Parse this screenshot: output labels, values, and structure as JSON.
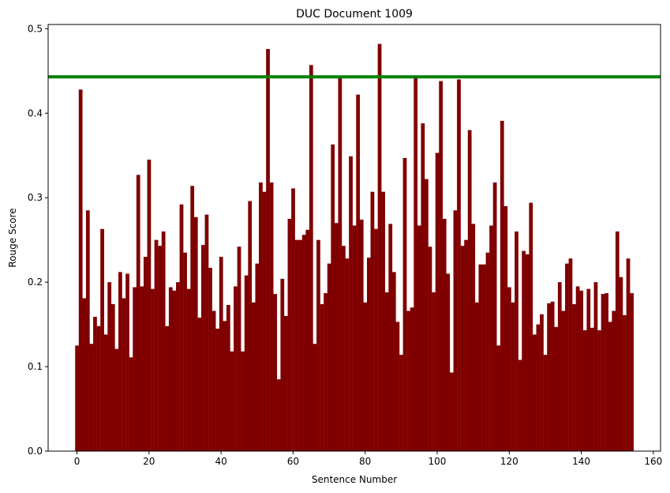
{
  "chart_data": {
    "type": "bar",
    "title": "DUC Document 1009",
    "xlabel": "Sentence Number",
    "ylabel": "Rouge Score",
    "xlim": [
      -8,
      162
    ],
    "ylim": [
      0,
      0.505
    ],
    "xticks": [
      "0",
      "20",
      "40",
      "60",
      "80",
      "100",
      "120",
      "140",
      "160"
    ],
    "yticks": [
      "0.0",
      "0.1",
      "0.2",
      "0.3",
      "0.4",
      "0.5"
    ],
    "grid": false,
    "bar_color": "#800000",
    "reference_line": {
      "y": 0.443,
      "color": "#008000"
    },
    "x": [
      0,
      1,
      2,
      3,
      4,
      5,
      6,
      7,
      8,
      9,
      10,
      11,
      12,
      13,
      14,
      15,
      16,
      17,
      18,
      19,
      20,
      21,
      22,
      23,
      24,
      25,
      26,
      27,
      28,
      29,
      30,
      31,
      32,
      33,
      34,
      35,
      36,
      37,
      38,
      39,
      40,
      41,
      42,
      43,
      44,
      45,
      46,
      47,
      48,
      49,
      50,
      51,
      52,
      53,
      54,
      55,
      56,
      57,
      58,
      59,
      60,
      61,
      62,
      63,
      64,
      65,
      66,
      67,
      68,
      69,
      70,
      71,
      72,
      73,
      74,
      75,
      76,
      77,
      78,
      79,
      80,
      81,
      82,
      83,
      84,
      85,
      86,
      87,
      88,
      89,
      90,
      91,
      92,
      93,
      94,
      95,
      96,
      97,
      98,
      99,
      100,
      101,
      102,
      103,
      104,
      105,
      106,
      107,
      108,
      109,
      110,
      111,
      112,
      113,
      114,
      115,
      116,
      117,
      118,
      119,
      120,
      121,
      122,
      123,
      124,
      125,
      126,
      127,
      128,
      129,
      130,
      131,
      132,
      133,
      134,
      135,
      136,
      137,
      138,
      139,
      140,
      141,
      142,
      143,
      144,
      145,
      146,
      147,
      148,
      149,
      150,
      151,
      152,
      153,
      154
    ],
    "values": [
      0.125,
      0.428,
      0.181,
      0.285,
      0.127,
      0.159,
      0.148,
      0.263,
      0.138,
      0.2,
      0.174,
      0.121,
      0.212,
      0.181,
      0.21,
      0.111,
      0.194,
      0.327,
      0.195,
      0.23,
      0.345,
      0.192,
      0.25,
      0.243,
      0.26,
      0.148,
      0.194,
      0.19,
      0.2,
      0.292,
      0.235,
      0.192,
      0.314,
      0.277,
      0.158,
      0.244,
      0.28,
      0.217,
      0.166,
      0.145,
      0.23,
      0.154,
      0.173,
      0.118,
      0.195,
      0.242,
      0.118,
      0.208,
      0.296,
      0.176,
      0.222,
      0.318,
      0.307,
      0.476,
      0.318,
      0.186,
      0.085,
      0.204,
      0.16,
      0.275,
      0.311,
      0.25,
      0.25,
      0.256,
      0.262,
      0.457,
      0.127,
      0.25,
      0.174,
      0.187,
      0.222,
      0.363,
      0.27,
      0.443,
      0.243,
      0.228,
      0.349,
      0.267,
      0.422,
      0.274,
      0.176,
      0.229,
      0.307,
      0.263,
      0.482,
      0.307,
      0.188,
      0.269,
      0.212,
      0.153,
      0.114,
      0.347,
      0.166,
      0.17,
      0.443,
      0.267,
      0.388,
      0.322,
      0.242,
      0.188,
      0.353,
      0.438,
      0.275,
      0.21,
      0.093,
      0.285,
      0.44,
      0.243,
      0.25,
      0.38,
      0.269,
      0.176,
      0.221,
      0.221,
      0.235,
      0.267,
      0.318,
      0.125,
      0.391,
      0.29,
      0.194,
      0.176,
      0.26,
      0.108,
      0.237,
      0.233,
      0.294,
      0.138,
      0.15,
      0.162,
      0.114,
      0.175,
      0.177,
      0.147,
      0.2,
      0.166,
      0.222,
      0.228,
      0.174,
      0.195,
      0.19,
      0.143,
      0.192,
      0.146,
      0.2,
      0.143,
      0.186,
      0.187,
      0.153,
      0.166,
      0.26,
      0.206,
      0.161,
      0.228,
      0.187
    ]
  }
}
